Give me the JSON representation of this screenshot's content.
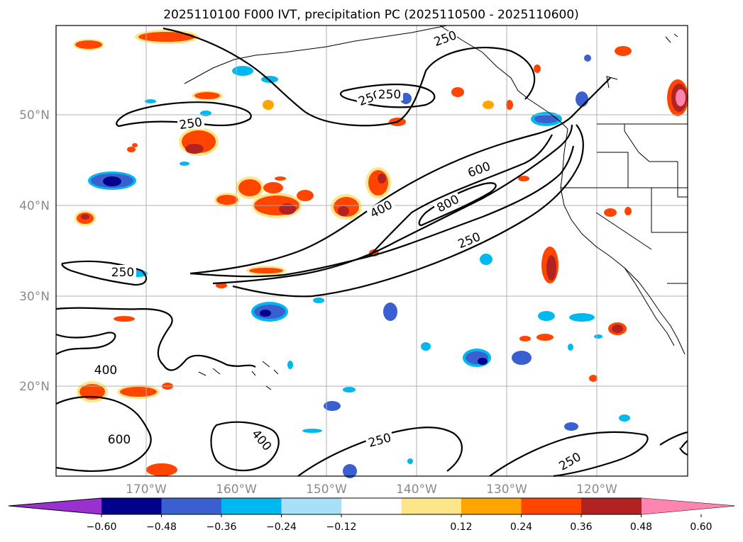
{
  "title": "2025110100 F000 IVT, precipitation PC (2025110500 - 2025110600)",
  "latitude_labels": [
    "50°N",
    "40°N",
    "30°N",
    "20°N"
  ],
  "longitude_labels": [
    "170°W",
    "160°W",
    "150°W",
    "140°W",
    "130°W",
    "120°W"
  ],
  "colorbar": {
    "ticks": [
      "−0.60",
      "−0.48",
      "−0.36",
      "−0.24",
      "−0.12",
      "0.12",
      "0.24",
      "0.36",
      "0.48",
      "0.60"
    ],
    "colors": [
      "#9b30d0",
      "#00008b",
      "#3a5fd0",
      "#00b8f0",
      "#a8e0f8",
      "#ffffff",
      "#fde68a",
      "#ffa500",
      "#ff4500",
      "#b22222",
      "#ff85b0"
    ]
  },
  "contour_labels": [
    "250",
    "250",
    "250",
    "250",
    "250",
    "400",
    "400",
    "600",
    "800",
    "250",
    "400",
    "600",
    "250",
    "250"
  ],
  "colors": {
    "contour": "#000000",
    "grid": "#b0b0b0",
    "coast": "#000000"
  }
}
